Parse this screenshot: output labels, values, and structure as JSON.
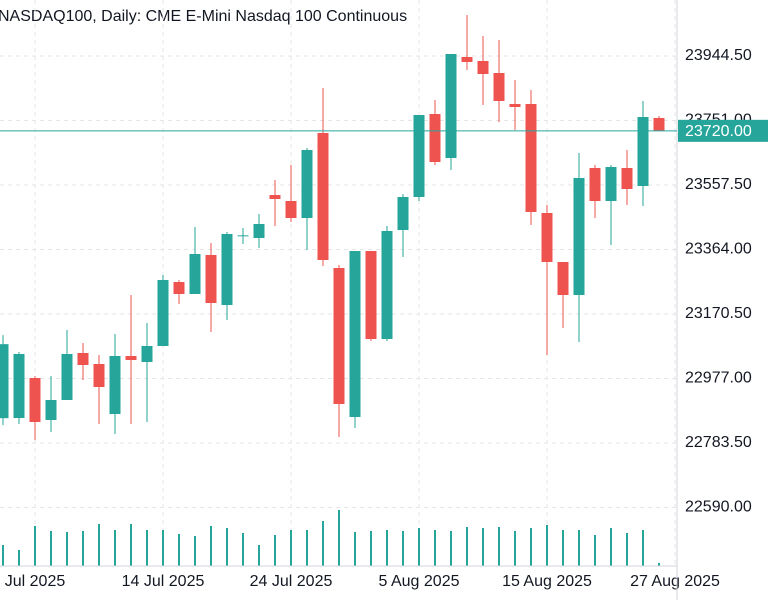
{
  "chart_data": {
    "type": "candlestick",
    "title": "NASDAQ100, Daily:  CME E-Mini Nasdaq 100 Continuous",
    "categories": [
      null,
      null,
      "Jul 2025",
      null,
      null,
      null,
      null,
      null,
      null,
      null,
      "14 Jul 2025",
      null,
      null,
      null,
      null,
      null,
      null,
      null,
      "24 Jul 2025",
      null,
      null,
      null,
      null,
      null,
      null,
      null,
      "5 Aug 2025",
      null,
      null,
      null,
      null,
      null,
      null,
      null,
      "15 Aug 2025",
      null,
      null,
      null,
      null,
      null,
      null,
      null,
      "27 Aug 2025"
    ],
    "open": [
      22858,
      22858.5,
      22978.5,
      22852.5,
      22912.5,
      23053.5,
      23020.5,
      22870.5,
      23044.5,
      23026.5,
      23074.5,
      23266.5,
      23230.5,
      23347.5,
      23197.5,
      23404.5,
      23398.5,
      23527.5,
      23509.5,
      23458.5,
      23713.5,
      23308.5,
      22861.5,
      23359.5,
      23095.5,
      23422.5,
      23521.5,
      23770.5,
      23638.5,
      23941.5,
      23929.5,
      23893.5,
      23800.5,
      23800.5,
      23473.5,
      23326.5,
      23227.5,
      23608.5,
      23509.5,
      23608.5,
      23554.5,
      23758.5,
      null
    ],
    "high": [
      23107,
      23056.5,
      22984.5,
      22984.5,
      23122.5,
      23083.5,
      23047.5,
      23110.5,
      23227.5,
      23143.5,
      23287.5,
      23272.5,
      23431.5,
      23383.5,
      23416.5,
      23428.5,
      23470.5,
      23572.5,
      23617.5,
      23668.5,
      23848.5,
      23317.5,
      23359.5,
      23359.5,
      23434.5,
      23530.5,
      23767.5,
      23812.5,
      23950.5,
      24067.5,
      24004.5,
      23992.5,
      23872.5,
      23842.5,
      23497.5,
      23326.5,
      23653.5,
      23617.5,
      23617.5,
      23662.5,
      23809.5,
      23764.5,
      null
    ],
    "low": [
      22837,
      22840.5,
      22792.5,
      22816.5,
      22912.5,
      22972.5,
      22840.5,
      22810.5,
      22840.5,
      22846.5,
      23074.5,
      23200.5,
      23230.5,
      23116.5,
      23152.5,
      23380.5,
      23368.5,
      23434.5,
      23446.5,
      23362.5,
      23314.5,
      22801.5,
      22828.5,
      23089.5,
      23089.5,
      23341.5,
      23509.5,
      23617.5,
      23602.5,
      23902.5,
      23797.5,
      23746.5,
      23722.5,
      23437.5,
      23047.5,
      23128.5,
      23086.5,
      23458.5,
      23377.5,
      23497.5,
      23494.5,
      23722.5,
      null
    ],
    "close": [
      23080,
      23050.5,
      22846.5,
      22912.5,
      23050.5,
      23017.5,
      22951.5,
      23044.5,
      23032.5,
      23074.5,
      23272.5,
      23230.5,
      23350.5,
      23203.5,
      23410.5,
      23406.5,
      23440.5,
      23515.5,
      23458.5,
      23662.5,
      23332.5,
      22900.5,
      23359.5,
      23095.5,
      23419.5,
      23521.5,
      23767.5,
      23626.5,
      23950.5,
      23926.5,
      23890.5,
      23809.5,
      23791.5,
      23476.5,
      23326.5,
      23227.5,
      23578.5,
      23509.5,
      23611.5,
      23545.5,
      23761.5,
      23720,
      null
    ],
    "volume": [
      21,
      16,
      40,
      35,
      34,
      35,
      42,
      36,
      42,
      36,
      36,
      32,
      30,
      40,
      38,
      33,
      21,
      31,
      36,
      36,
      45,
      56,
      34,
      35,
      36,
      35,
      38,
      36,
      35,
      39,
      38,
      39,
      35,
      38,
      41,
      36,
      36,
      31,
      38,
      33,
      36,
      3,
      null
    ],
    "up_color": "#26a69a",
    "down_color": "#ef5350",
    "volume_color": "#26a69a",
    "ylim": [
      22414.5,
      24112.5
    ],
    "yticks": [
      {
        "value": 22590,
        "label": "22590.00"
      },
      {
        "value": 22783.5,
        "label": "22783.50"
      },
      {
        "value": 22977,
        "label": "22977.00"
      },
      {
        "value": 23170.5,
        "label": "23170.50"
      },
      {
        "value": 23364,
        "label": "23364.00"
      },
      {
        "value": 23557.5,
        "label": "23557.50"
      },
      {
        "value": 23751,
        "label": "23751.00"
      },
      {
        "value": 23944.5,
        "label": "23944.50"
      }
    ],
    "last_price": {
      "value": 23720,
      "label": "23720.00"
    },
    "grid": true
  }
}
